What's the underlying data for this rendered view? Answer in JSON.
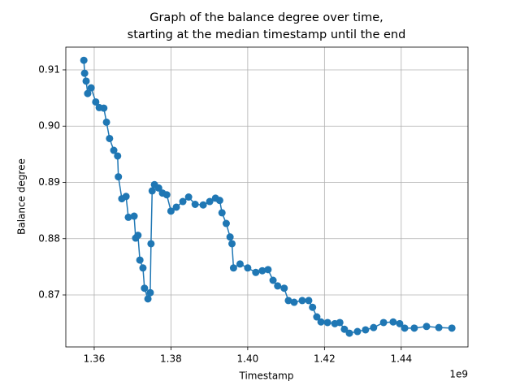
{
  "chart_data": {
    "type": "line",
    "title": [
      "Graph of the balance degree over time,",
      "starting at the median timestamp until the end"
    ],
    "x_label": "Timestamp",
    "y_label": "Balance degree",
    "x_offset_label": "1e9",
    "xlim": [
      1.3526,
      1.4574
    ],
    "ylim": [
      0.86076,
      0.91404
    ],
    "xticks": [
      1.36,
      1.38,
      {
        "value": 1.4,
        "label": "1.40"
      },
      1.42,
      1.44
    ],
    "yticks": [
      0.87,
      0.88,
      0.89,
      {
        "value": 0.9,
        "label": "0.90"
      },
      0.91
    ],
    "grid": true,
    "marker": "o",
    "x": [
      1.3573,
      1.3575,
      1.3579,
      1.3583,
      1.3592,
      1.3604,
      1.3613,
      1.3625,
      1.3632,
      1.364,
      1.3651,
      1.3661,
      1.3663,
      1.3672,
      1.3683,
      1.3689,
      1.3704,
      1.3708,
      1.3714,
      1.3719,
      1.3727,
      1.3731,
      1.374,
      1.3746,
      1.3748,
      1.3751,
      1.3757,
      1.3768,
      1.3778,
      1.3789,
      1.38,
      1.3814,
      1.3831,
      1.3846,
      1.3863,
      1.3884,
      1.3901,
      1.3916,
      1.3927,
      1.3933,
      1.3944,
      1.3954,
      1.3959,
      1.3963,
      1.398,
      1.4,
      1.4021,
      1.4038,
      1.4053,
      1.4066,
      1.4078,
      1.4095,
      1.4106,
      1.4121,
      1.4142,
      1.4159,
      1.4169,
      1.418,
      1.4191,
      1.4208,
      1.4227,
      1.424,
      1.4252,
      1.4265,
      1.4286,
      1.4307,
      1.4328,
      1.4354,
      1.4379,
      1.4396,
      1.4409,
      1.4434,
      1.4466,
      1.4498,
      1.4532
    ],
    "series": [
      {
        "name": "Balance degree",
        "color": "#1f77b4",
        "values": [
          0.9117,
          0.9094,
          0.908,
          0.9058,
          0.9068,
          0.9043,
          0.9033,
          0.9032,
          0.9007,
          0.8978,
          0.8957,
          0.8947,
          0.891,
          0.8871,
          0.8875,
          0.8838,
          0.884,
          0.8801,
          0.8806,
          0.8762,
          0.8748,
          0.8712,
          0.8693,
          0.8704,
          0.8791,
          0.8885,
          0.8896,
          0.889,
          0.8881,
          0.8878,
          0.8849,
          0.8856,
          0.8866,
          0.8874,
          0.8861,
          0.886,
          0.8866,
          0.8872,
          0.8868,
          0.8846,
          0.8827,
          0.8803,
          0.8791,
          0.8748,
          0.8755,
          0.8748,
          0.874,
          0.8743,
          0.8745,
          0.8726,
          0.8716,
          0.8712,
          0.869,
          0.8687,
          0.869,
          0.869,
          0.8678,
          0.8661,
          0.8652,
          0.8651,
          0.8649,
          0.8651,
          0.8639,
          0.8632,
          0.8635,
          0.8638,
          0.8642,
          0.8651,
          0.8652,
          0.8649,
          0.8641,
          0.8641,
          0.8644,
          0.8642,
          0.8641
        ]
      }
    ]
  }
}
